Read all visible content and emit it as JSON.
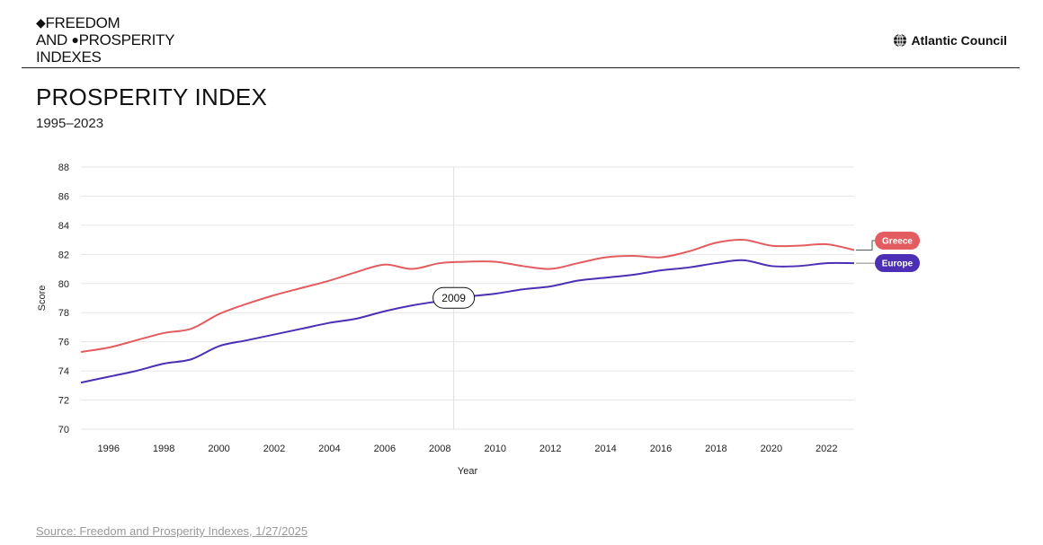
{
  "header": {
    "logo_lines": [
      "FREEDOM",
      "AND",
      "PROSPERITY",
      "INDEXES"
    ],
    "brand": "Atlantic Council"
  },
  "title": "PROSPERITY INDEX",
  "subtitle": "1995–2023",
  "source": "Source: Freedom and Prosperity Indexes, 1/27/2025",
  "colors": {
    "greece": "#e35d60",
    "europe": "#4c2fb5",
    "grid": "#e6e6e6"
  },
  "chart_data": {
    "type": "line",
    "title": "PROSPERITY INDEX",
    "xlabel": "Year",
    "ylabel": "Score",
    "xlim": [
      1995,
      2023
    ],
    "ylim": [
      70,
      88
    ],
    "x_ticks": [
      1996,
      1998,
      2000,
      2002,
      2004,
      2006,
      2008,
      2010,
      2012,
      2014,
      2016,
      2018,
      2020,
      2022
    ],
    "y_ticks": [
      70,
      72,
      74,
      76,
      78,
      80,
      82,
      84,
      86,
      88
    ],
    "grid": true,
    "legend": "right end labels",
    "x": [
      1995,
      1996,
      1997,
      1998,
      1999,
      2000,
      2001,
      2002,
      2003,
      2004,
      2005,
      2006,
      2007,
      2008,
      2009,
      2010,
      2011,
      2012,
      2013,
      2014,
      2015,
      2016,
      2017,
      2018,
      2019,
      2020,
      2021,
      2022,
      2023
    ],
    "series": [
      {
        "name": "Greece",
        "values": [
          75.3,
          75.6,
          76.1,
          76.6,
          76.9,
          77.9,
          78.6,
          79.2,
          79.7,
          80.2,
          80.8,
          81.3,
          81.0,
          81.4,
          81.5,
          81.5,
          81.2,
          81.0,
          81.4,
          81.8,
          81.9,
          81.8,
          82.2,
          82.8,
          83.0,
          82.6,
          82.6,
          82.7,
          82.3
        ]
      },
      {
        "name": "Europe",
        "values": [
          73.2,
          73.6,
          74.0,
          74.5,
          74.8,
          75.7,
          76.1,
          76.5,
          76.9,
          77.3,
          77.6,
          78.1,
          78.5,
          78.8,
          79.1,
          79.3,
          79.6,
          79.8,
          80.2,
          80.4,
          80.6,
          80.9,
          81.1,
          81.4,
          81.6,
          81.2,
          81.2,
          81.4,
          81.4
        ]
      }
    ],
    "annotation": {
      "label": "2009"
    }
  }
}
